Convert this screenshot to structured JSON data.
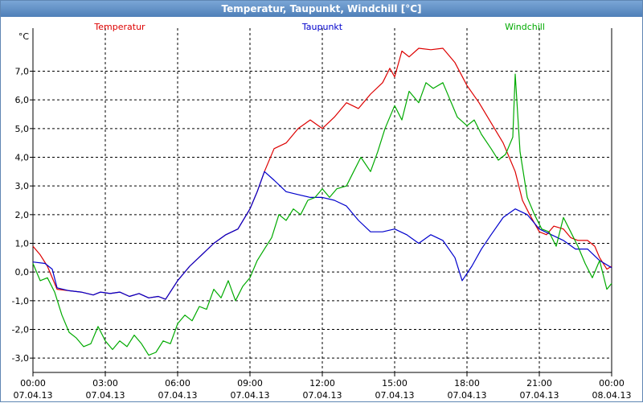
{
  "window": {
    "title": "Temperatur, Taupunkt, Windchill [°C]"
  },
  "chart_data": {
    "type": "line",
    "unit": "°C",
    "ylim": [
      -3.5,
      8.5
    ],
    "y_ticks": [
      {
        "v": 7,
        "label": "7,0"
      },
      {
        "v": 6,
        "label": "6,0"
      },
      {
        "v": 5,
        "label": "5,0"
      },
      {
        "v": 4,
        "label": "4,0"
      },
      {
        "v": 3,
        "label": "3,0"
      },
      {
        "v": 2,
        "label": "2,0"
      },
      {
        "v": 1,
        "label": "1,0"
      },
      {
        "v": 0,
        "label": "0,0"
      },
      {
        "v": -1,
        "label": "-1,0"
      },
      {
        "v": -2,
        "label": "-2,0"
      },
      {
        "v": -3,
        "label": "-3,0"
      }
    ],
    "xlim": [
      0,
      24
    ],
    "x_ticks": [
      {
        "h": 0,
        "time": "00:00",
        "date": "07.04.13"
      },
      {
        "h": 3,
        "time": "03:00",
        "date": "07.04.13"
      },
      {
        "h": 6,
        "time": "06:00",
        "date": "07.04.13"
      },
      {
        "h": 9,
        "time": "09:00",
        "date": "07.04.13"
      },
      {
        "h": 12,
        "time": "12:00",
        "date": "07.04.13"
      },
      {
        "h": 15,
        "time": "15:00",
        "date": "07.04.13"
      },
      {
        "h": 18,
        "time": "18:00",
        "date": "07.04.13"
      },
      {
        "h": 21,
        "time": "21:00",
        "date": "07.04.13"
      },
      {
        "h": 24,
        "time": "00:00",
        "date": "08.04.13"
      }
    ],
    "grid": true,
    "series": [
      {
        "name": "Temperatur",
        "color": "#dd0000",
        "points": [
          [
            0,
            0.9
          ],
          [
            0.3,
            0.6
          ],
          [
            0.6,
            0.2
          ],
          [
            1.0,
            -0.6
          ],
          [
            1.5,
            -0.65
          ],
          [
            2.0,
            -0.7
          ],
          [
            2.5,
            -0.8
          ],
          [
            2.8,
            -0.7
          ],
          [
            3.2,
            -0.75
          ],
          [
            3.6,
            -0.7
          ],
          [
            4.0,
            -0.85
          ],
          [
            4.4,
            -0.75
          ],
          [
            4.8,
            -0.9
          ],
          [
            5.2,
            -0.85
          ],
          [
            5.5,
            -0.95
          ],
          [
            6.0,
            -0.3
          ],
          [
            6.5,
            0.2
          ],
          [
            7.0,
            0.6
          ],
          [
            7.5,
            1.0
          ],
          [
            8.0,
            1.3
          ],
          [
            8.5,
            1.5
          ],
          [
            9.0,
            2.2
          ],
          [
            9.3,
            2.8
          ],
          [
            9.6,
            3.5
          ],
          [
            10.0,
            4.3
          ],
          [
            10.5,
            4.5
          ],
          [
            11.0,
            5.0
          ],
          [
            11.5,
            5.3
          ],
          [
            12.0,
            5.0
          ],
          [
            12.5,
            5.4
          ],
          [
            13.0,
            5.9
          ],
          [
            13.5,
            5.7
          ],
          [
            14.0,
            6.2
          ],
          [
            14.5,
            6.6
          ],
          [
            14.8,
            7.1
          ],
          [
            15.0,
            6.8
          ],
          [
            15.3,
            7.7
          ],
          [
            15.6,
            7.5
          ],
          [
            16.0,
            7.8
          ],
          [
            16.5,
            7.75
          ],
          [
            17.0,
            7.8
          ],
          [
            17.5,
            7.3
          ],
          [
            18.0,
            6.5
          ],
          [
            18.5,
            5.9
          ],
          [
            19.0,
            5.2
          ],
          [
            19.5,
            4.5
          ],
          [
            20.0,
            3.5
          ],
          [
            20.3,
            2.5
          ],
          [
            20.6,
            2.0
          ],
          [
            21.0,
            1.4
          ],
          [
            21.3,
            1.3
          ],
          [
            21.6,
            1.6
          ],
          [
            22.0,
            1.5
          ],
          [
            22.3,
            1.2
          ],
          [
            22.6,
            1.1
          ],
          [
            23.0,
            1.1
          ],
          [
            23.3,
            0.9
          ],
          [
            23.5,
            0.5
          ],
          [
            23.8,
            0.1
          ],
          [
            24.0,
            0.2
          ]
        ]
      },
      {
        "name": "Taupunkt",
        "color": "#0000cc",
        "points": [
          [
            0,
            0.35
          ],
          [
            0.5,
            0.3
          ],
          [
            0.8,
            0.1
          ],
          [
            1.0,
            -0.55
          ],
          [
            1.5,
            -0.65
          ],
          [
            2.0,
            -0.7
          ],
          [
            2.5,
            -0.8
          ],
          [
            2.8,
            -0.7
          ],
          [
            3.2,
            -0.75
          ],
          [
            3.6,
            -0.7
          ],
          [
            4.0,
            -0.85
          ],
          [
            4.4,
            -0.75
          ],
          [
            4.8,
            -0.9
          ],
          [
            5.2,
            -0.85
          ],
          [
            5.5,
            -0.95
          ],
          [
            6.0,
            -0.3
          ],
          [
            6.5,
            0.2
          ],
          [
            7.0,
            0.6
          ],
          [
            7.5,
            1.0
          ],
          [
            8.0,
            1.3
          ],
          [
            8.5,
            1.5
          ],
          [
            9.0,
            2.2
          ],
          [
            9.3,
            2.8
          ],
          [
            9.6,
            3.5
          ],
          [
            10.0,
            3.2
          ],
          [
            10.5,
            2.8
          ],
          [
            11.0,
            2.7
          ],
          [
            11.5,
            2.6
          ],
          [
            12.0,
            2.6
          ],
          [
            12.5,
            2.5
          ],
          [
            13.0,
            2.3
          ],
          [
            13.5,
            1.8
          ],
          [
            14.0,
            1.4
          ],
          [
            14.5,
            1.4
          ],
          [
            15.0,
            1.5
          ],
          [
            15.5,
            1.3
          ],
          [
            16.0,
            1.0
          ],
          [
            16.5,
            1.3
          ],
          [
            17.0,
            1.1
          ],
          [
            17.5,
            0.5
          ],
          [
            17.8,
            -0.3
          ],
          [
            18.2,
            0.2
          ],
          [
            18.6,
            0.8
          ],
          [
            19.0,
            1.3
          ],
          [
            19.5,
            1.9
          ],
          [
            20.0,
            2.2
          ],
          [
            20.5,
            2.0
          ],
          [
            21.0,
            1.5
          ],
          [
            21.5,
            1.3
          ],
          [
            22.0,
            1.1
          ],
          [
            22.5,
            0.8
          ],
          [
            23.0,
            0.8
          ],
          [
            23.5,
            0.4
          ],
          [
            24.0,
            0.15
          ]
        ]
      },
      {
        "name": "Windchill",
        "color": "#00aa00",
        "points": [
          [
            0,
            0.3
          ],
          [
            0.3,
            -0.3
          ],
          [
            0.6,
            -0.2
          ],
          [
            0.9,
            -0.7
          ],
          [
            1.2,
            -1.5
          ],
          [
            1.5,
            -2.1
          ],
          [
            1.8,
            -2.3
          ],
          [
            2.1,
            -2.6
          ],
          [
            2.4,
            -2.5
          ],
          [
            2.7,
            -1.9
          ],
          [
            3.0,
            -2.4
          ],
          [
            3.3,
            -2.7
          ],
          [
            3.6,
            -2.4
          ],
          [
            3.9,
            -2.6
          ],
          [
            4.2,
            -2.2
          ],
          [
            4.5,
            -2.5
          ],
          [
            4.8,
            -2.9
          ],
          [
            5.1,
            -2.8
          ],
          [
            5.4,
            -2.4
          ],
          [
            5.7,
            -2.5
          ],
          [
            6.0,
            -1.8
          ],
          [
            6.3,
            -1.5
          ],
          [
            6.6,
            -1.7
          ],
          [
            6.9,
            -1.2
          ],
          [
            7.2,
            -1.3
          ],
          [
            7.5,
            -0.6
          ],
          [
            7.8,
            -0.9
          ],
          [
            8.1,
            -0.3
          ],
          [
            8.4,
            -1.0
          ],
          [
            8.7,
            -0.5
          ],
          [
            9.0,
            -0.2
          ],
          [
            9.3,
            0.4
          ],
          [
            9.6,
            0.8
          ],
          [
            9.9,
            1.2
          ],
          [
            10.2,
            2.0
          ],
          [
            10.5,
            1.8
          ],
          [
            10.8,
            2.2
          ],
          [
            11.1,
            2.0
          ],
          [
            11.4,
            2.5
          ],
          [
            11.7,
            2.6
          ],
          [
            12.0,
            2.9
          ],
          [
            12.3,
            2.6
          ],
          [
            12.6,
            2.9
          ],
          [
            13.0,
            3.0
          ],
          [
            13.3,
            3.5
          ],
          [
            13.6,
            4.0
          ],
          [
            14.0,
            3.5
          ],
          [
            14.3,
            4.2
          ],
          [
            14.6,
            5.0
          ],
          [
            15.0,
            5.8
          ],
          [
            15.3,
            5.3
          ],
          [
            15.6,
            6.3
          ],
          [
            16.0,
            5.9
          ],
          [
            16.3,
            6.6
          ],
          [
            16.6,
            6.4
          ],
          [
            17.0,
            6.6
          ],
          [
            17.3,
            6.0
          ],
          [
            17.6,
            5.4
          ],
          [
            18.0,
            5.1
          ],
          [
            18.3,
            5.3
          ],
          [
            18.6,
            4.8
          ],
          [
            19.0,
            4.3
          ],
          [
            19.3,
            3.9
          ],
          [
            19.6,
            4.1
          ],
          [
            19.9,
            4.7
          ],
          [
            20.0,
            6.9
          ],
          [
            20.2,
            4.2
          ],
          [
            20.5,
            2.6
          ],
          [
            20.8,
            2.0
          ],
          [
            21.1,
            1.5
          ],
          [
            21.4,
            1.4
          ],
          [
            21.7,
            0.9
          ],
          [
            22.0,
            1.9
          ],
          [
            22.3,
            1.4
          ],
          [
            22.6,
            0.9
          ],
          [
            22.9,
            0.3
          ],
          [
            23.2,
            -0.2
          ],
          [
            23.5,
            0.4
          ],
          [
            23.8,
            -0.6
          ],
          [
            24.0,
            -0.4
          ]
        ]
      }
    ]
  }
}
